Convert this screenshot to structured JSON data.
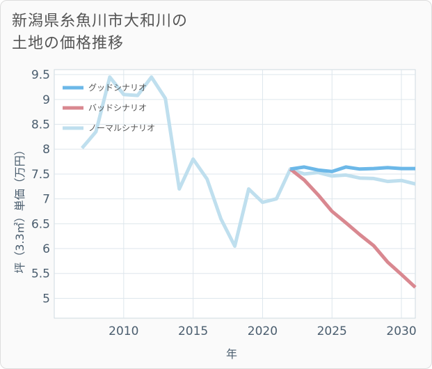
{
  "title_lines": [
    "新潟県糸魚川市大和川の",
    "土地の価格推移"
  ],
  "chart_data": {
    "type": "line",
    "title": "新潟県糸魚川市大和川の土地の価格推移",
    "xlabel": "年",
    "ylabel": "坪（3.3㎡）単価（万円）",
    "xlim": [
      2005,
      2031
    ],
    "ylim": [
      4.6,
      9.6
    ],
    "x_ticks": [
      2010,
      2015,
      2020,
      2025,
      2030
    ],
    "y_ticks": [
      5,
      5.5,
      6,
      6.5,
      7,
      7.5,
      8,
      8.5,
      9,
      9.5
    ],
    "legend_position": "top-left",
    "series": [
      {
        "name": "グッドシナリオ",
        "color": "#6cb8e8",
        "points": [
          [
            2022,
            7.6
          ],
          [
            2023,
            7.64
          ],
          [
            2024,
            7.58
          ],
          [
            2025,
            7.55
          ],
          [
            2026,
            7.64
          ],
          [
            2027,
            7.6
          ],
          [
            2028,
            7.61
          ],
          [
            2029,
            7.63
          ],
          [
            2030,
            7.61
          ],
          [
            2031,
            7.61
          ]
        ]
      },
      {
        "name": "バッドシナリオ",
        "color": "#d98890",
        "points": [
          [
            2022,
            7.6
          ],
          [
            2023,
            7.38
          ],
          [
            2024,
            7.08
          ],
          [
            2025,
            6.75
          ],
          [
            2026,
            6.52
          ],
          [
            2027,
            6.28
          ],
          [
            2028,
            6.06
          ],
          [
            2029,
            5.73
          ],
          [
            2030,
            5.48
          ],
          [
            2031,
            5.22
          ]
        ]
      },
      {
        "name": "ノーマルシナリオ",
        "color": "#bfdfee",
        "points": [
          [
            2007,
            8.02
          ],
          [
            2008,
            8.35
          ],
          [
            2009,
            9.45
          ],
          [
            2010,
            9.1
          ],
          [
            2011,
            9.08
          ],
          [
            2012,
            9.45
          ],
          [
            2013,
            9.02
          ],
          [
            2014,
            7.2
          ],
          [
            2015,
            7.8
          ],
          [
            2016,
            7.4
          ],
          [
            2017,
            6.6
          ],
          [
            2018,
            6.05
          ],
          [
            2019,
            7.2
          ],
          [
            2020,
            6.93
          ],
          [
            2021,
            7.0
          ],
          [
            2022,
            7.6
          ],
          [
            2023,
            7.5
          ],
          [
            2024,
            7.53
          ],
          [
            2025,
            7.46
          ],
          [
            2026,
            7.48
          ],
          [
            2027,
            7.42
          ],
          [
            2028,
            7.41
          ],
          [
            2029,
            7.35
          ],
          [
            2030,
            7.37
          ],
          [
            2031,
            7.3
          ]
        ]
      }
    ]
  }
}
